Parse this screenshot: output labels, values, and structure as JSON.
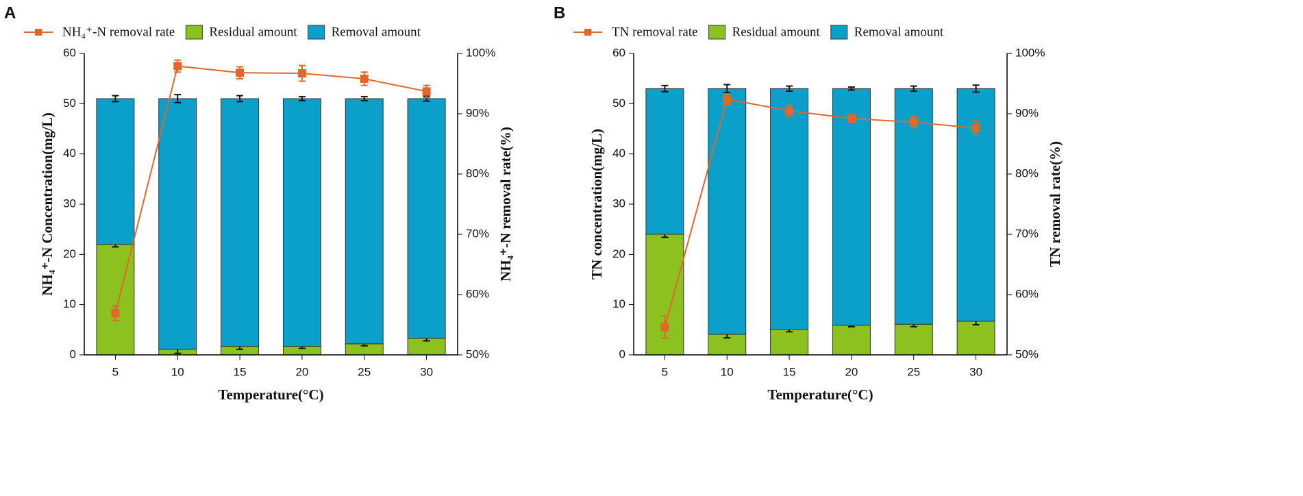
{
  "chart_data": [
    {
      "type": "bar",
      "panel": "A",
      "categories": [
        "5",
        "10",
        "15",
        "20",
        "25",
        "30"
      ],
      "xlabel": "Temperature(°C)",
      "ylabel": "NH₄⁺-N Concentration(mg/L)",
      "y2label": "NH₄⁺-N removal rate(%)",
      "ylim": [
        0,
        60
      ],
      "yticks": [
        0,
        10,
        20,
        30,
        40,
        50,
        60
      ],
      "y2lim": [
        50,
        100
      ],
      "y2ticks": [
        {
          "value": 50,
          "label": "50%"
        },
        {
          "value": 60,
          "label": "60%"
        },
        {
          "value": 70,
          "label": "70%"
        },
        {
          "value": 80,
          "label": "80%"
        },
        {
          "value": 90,
          "label": "90%"
        },
        {
          "value": 100,
          "label": "100%"
        }
      ],
      "stacked": true,
      "series": [
        {
          "name": "NH₄⁺-N removal rate",
          "type": "line",
          "axis": "y2",
          "color": "#e2672a",
          "values": [
            56.9,
            97.9,
            96.8,
            96.7,
            95.8,
            93.7
          ],
          "errors": [
            1.2,
            1.0,
            1.0,
            1.3,
            1.1,
            1.0
          ]
        },
        {
          "name": "Residual amount",
          "color": "#8cc11f",
          "values": [
            22,
            1.1,
            1.7,
            1.7,
            2.2,
            3.3
          ],
          "errors": [
            0.5,
            0.8,
            0.6,
            0.4,
            0.4,
            0.5
          ]
        },
        {
          "name": "Removal amount",
          "color": "#0aa0c9",
          "values": [
            29,
            49.9,
            49.3,
            49.3,
            48.8,
            47.7
          ],
          "errors": [
            0.6,
            0.8,
            0.6,
            0.4,
            0.4,
            0.5
          ]
        }
      ]
    },
    {
      "type": "bar",
      "panel": "B",
      "categories": [
        "5",
        "10",
        "15",
        "20",
        "25",
        "30"
      ],
      "xlabel": "Temperature(°C)",
      "ylabel": "TN concentration(mg/L)",
      "y2label": "TN removal rate(%)",
      "ylim": [
        0,
        60
      ],
      "yticks": [
        0,
        10,
        20,
        30,
        40,
        50,
        60
      ],
      "y2lim": [
        50,
        100
      ],
      "y2ticks": [
        {
          "value": 50,
          "label": "50%"
        },
        {
          "value": 60,
          "label": "60%"
        },
        {
          "value": 70,
          "label": "70%"
        },
        {
          "value": 80,
          "label": "80%"
        },
        {
          "value": 90,
          "label": "90%"
        },
        {
          "value": 100,
          "label": "100%"
        }
      ],
      "stacked": true,
      "series": [
        {
          "name": "TN removal rate",
          "type": "line",
          "axis": "y2",
          "color": "#e2672a",
          "values": [
            54.6,
            92.4,
            90.5,
            89.2,
            88.6,
            87.6
          ],
          "errors": [
            1.8,
            0.9,
            0.9,
            0.6,
            0.9,
            1.2
          ]
        },
        {
          "name": "Residual amount",
          "color": "#8cc11f",
          "values": [
            24,
            4.1,
            5.1,
            5.9,
            6.1,
            6.7
          ],
          "errors": [
            0.6,
            0.7,
            0.5,
            0.3,
            0.5,
            0.7
          ]
        },
        {
          "name": "Removal amount",
          "color": "#0aa0c9",
          "values": [
            29,
            48.9,
            47.9,
            47.1,
            46.9,
            46.3
          ],
          "errors": [
            0.6,
            0.8,
            0.5,
            0.3,
            0.5,
            0.7
          ]
        }
      ]
    }
  ]
}
